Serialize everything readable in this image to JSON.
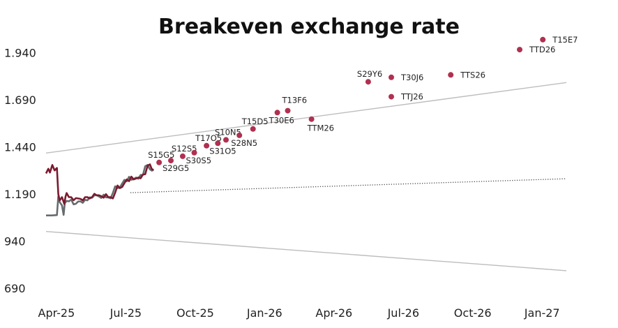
{
  "chart_data": {
    "type": "scatter",
    "title": "Breakeven exchange rate",
    "xlabel": "",
    "ylabel": "",
    "x_axis": {
      "unit": "month index (0 = Apr-25)",
      "range": [
        -0.45,
        22.05
      ],
      "ticks": [
        {
          "value": 0,
          "label": "Apr-25"
        },
        {
          "value": 3,
          "label": "Jul-25"
        },
        {
          "value": 6,
          "label": "Oct-25"
        },
        {
          "value": 9,
          "label": "Jan-26"
        },
        {
          "value": 12,
          "label": "Apr-26"
        },
        {
          "value": 15,
          "label": "Jul-26"
        },
        {
          "value": 18,
          "label": "Oct-26"
        },
        {
          "value": 21,
          "label": "Jan-27"
        }
      ]
    },
    "y_axis": {
      "range": [
        665,
        2035
      ],
      "ticks": [
        {
          "value": 690,
          "label": "690"
        },
        {
          "value": 940,
          "label": "940"
        },
        {
          "value": 1190,
          "label": "1.190"
        },
        {
          "value": 1440,
          "label": "1.440"
        },
        {
          "value": 1690,
          "label": "1.690"
        },
        {
          "value": 1940,
          "label": "1.940"
        }
      ]
    },
    "grid": false,
    "colors": {
      "points": "#b03050",
      "breakeven_line": "#7a1a2e",
      "spot_line": "#666b6e",
      "band": "#bdbdbd",
      "forward": "#444444"
    },
    "points": [
      {
        "name": "S15G5",
        "x": 4.44,
        "y": 1358,
        "label_pos": "above-left"
      },
      {
        "name": "S29G5",
        "x": 4.95,
        "y": 1368,
        "label_pos": "below"
      },
      {
        "name": "S12S5",
        "x": 5.46,
        "y": 1391,
        "label_pos": "above-left"
      },
      {
        "name": "S30S5",
        "x": 5.96,
        "y": 1410,
        "label_pos": "below"
      },
      {
        "name": "T17O5",
        "x": 6.49,
        "y": 1447,
        "label_pos": "above-left"
      },
      {
        "name": "S31O5",
        "x": 6.98,
        "y": 1460,
        "label_pos": "below"
      },
      {
        "name": "S10N5",
        "x": 7.33,
        "y": 1478,
        "label_pos": "above-left"
      },
      {
        "name": "S28N5",
        "x": 7.91,
        "y": 1502,
        "label_pos": "below"
      },
      {
        "name": "T15D5",
        "x": 8.5,
        "y": 1536,
        "label_pos": "above-left"
      },
      {
        "name": "T30E6",
        "x": 9.55,
        "y": 1623,
        "label_pos": "below"
      },
      {
        "name": "T13F6",
        "x": 10.0,
        "y": 1633,
        "label_pos": "above"
      },
      {
        "name": "TTM26",
        "x": 11.03,
        "y": 1588,
        "label_pos": "below-right"
      },
      {
        "name": "S29Y6",
        "x": 13.48,
        "y": 1786,
        "label_pos": "above-left"
      },
      {
        "name": "T30J6",
        "x": 14.48,
        "y": 1810,
        "label_pos": "right"
      },
      {
        "name": "TTJ26",
        "x": 14.48,
        "y": 1707,
        "label_pos": "right"
      },
      {
        "name": "TTS26",
        "x": 17.05,
        "y": 1823,
        "label_pos": "right"
      },
      {
        "name": "TTD26",
        "x": 20.03,
        "y": 1957,
        "label_pos": "right"
      },
      {
        "name": "T15E7",
        "x": 21.03,
        "y": 2010,
        "label_pos": "right"
      }
    ],
    "series": [
      {
        "name": "band-upper",
        "style": "solid-light",
        "x": [
          -0.45,
          22.05
        ],
        "y": [
          1408,
          1782
        ]
      },
      {
        "name": "band-lower",
        "style": "solid-light",
        "x": [
          -0.45,
          22.05
        ],
        "y": [
          992,
          784
        ]
      },
      {
        "name": "forward",
        "style": "dotted",
        "x": [
          3.2,
          22.05
        ],
        "y": [
          1198,
          1272
        ]
      },
      {
        "name": "breakeven",
        "style": "solid-dark",
        "x": [
          -0.45,
          -0.35,
          -0.28,
          -0.18,
          -0.08,
          0.02,
          0.08,
          0.14,
          0.24,
          0.34,
          0.39,
          0.44,
          0.54,
          0.64,
          0.74,
          0.84,
          0.94,
          1.04,
          1.14,
          1.24,
          1.34,
          1.44,
          1.54,
          1.64,
          1.74,
          1.84,
          1.94,
          2.04,
          2.14,
          2.24,
          2.34,
          2.44,
          2.54,
          2.64,
          2.74,
          2.84,
          2.94,
          3.04,
          3.14,
          3.24,
          3.34,
          3.44,
          3.54,
          3.64,
          3.74,
          3.84,
          3.94,
          4.04,
          4.12,
          4.2
        ],
        "y": [
          1300,
          1325,
          1305,
          1345,
          1316,
          1329,
          1190,
          1157,
          1174,
          1138,
          1176,
          1196,
          1174,
          1174,
          1158,
          1169,
          1167,
          1165,
          1157,
          1174,
          1174,
          1167,
          1174,
          1192,
          1184,
          1184,
          1179,
          1171,
          1190,
          1174,
          1174,
          1167,
          1198,
          1236,
          1222,
          1228,
          1248,
          1268,
          1259,
          1283,
          1268,
          1273,
          1278,
          1274,
          1294,
          1296,
          1341,
          1348,
          1324,
          1318
        ]
      },
      {
        "name": "spot",
        "style": "solid-gray",
        "x": [
          -0.45,
          -0.2,
          0.02,
          0.08,
          0.14,
          0.24,
          0.31,
          0.36,
          0.44,
          0.54,
          0.64,
          0.74,
          0.84,
          0.94,
          1.04,
          1.14,
          1.24,
          1.34,
          1.44,
          1.54,
          1.64,
          1.74,
          1.84,
          1.94,
          2.04,
          2.14,
          2.24,
          2.34,
          2.44,
          2.54,
          2.64,
          2.74,
          2.84,
          2.94,
          3.04,
          3.14,
          3.24,
          3.34,
          3.44,
          3.54,
          3.64,
          3.74,
          3.84,
          3.94,
          4.04,
          4.12,
          4.2
        ],
        "y": [
          1077,
          1077,
          1079,
          1178,
          1148,
          1130,
          1080,
          1142,
          1154,
          1152,
          1161,
          1136,
          1139,
          1151,
          1152,
          1144,
          1160,
          1157,
          1173,
          1171,
          1184,
          1184,
          1178,
          1170,
          1187,
          1173,
          1173,
          1168,
          1196,
          1232,
          1222,
          1226,
          1246,
          1266,
          1258,
          1282,
          1266,
          1270,
          1278,
          1272,
          1292,
          1292,
          1338,
          1345,
          1322,
          1315,
          1318
        ]
      }
    ]
  }
}
